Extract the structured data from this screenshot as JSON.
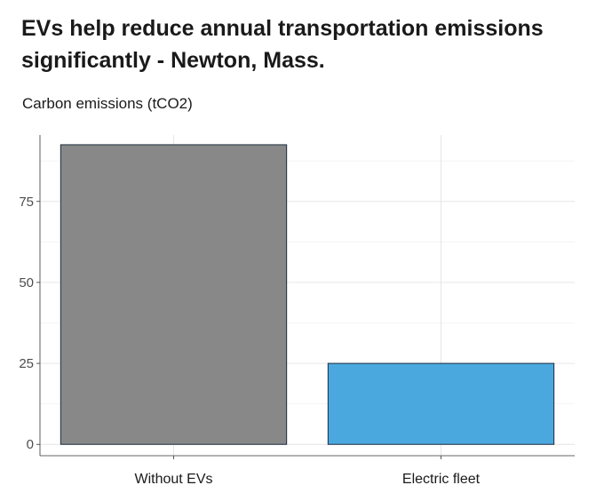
{
  "chart_data": {
    "type": "bar",
    "title": "EVs help reduce annual transportation emissions significantly - Newton, Mass.",
    "ylabel": "Carbon emissions (tCO2)",
    "xlabel": "",
    "categories": [
      "Without EVs",
      "Electric fleet"
    ],
    "values": [
      92.5,
      25
    ],
    "colors": [
      "#888888",
      "#4aa8df"
    ],
    "bar_outline": "#1c2b3f",
    "ylim": [
      -3.5,
      95.5
    ],
    "yticks": [
      0,
      25,
      50,
      75
    ],
    "grid": true,
    "legend": "none"
  }
}
